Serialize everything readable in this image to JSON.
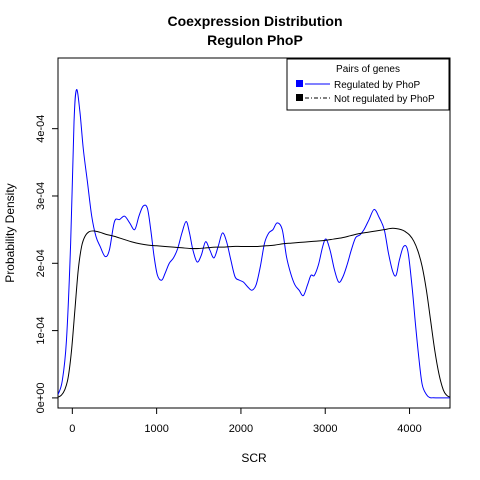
{
  "chart_data": {
    "type": "line",
    "title": "Coexpression Distribution",
    "subtitle": "Regulon PhoP",
    "xlabel": "SCR",
    "ylabel": "Probability Density",
    "xlim": [
      -170,
      4480
    ],
    "ylim": [
      -1.5e-05,
      0.000505
    ],
    "xticks": [
      0,
      1000,
      2000,
      3000,
      4000
    ],
    "xtick_labels": [
      "0",
      "1000",
      "2000",
      "3000",
      "4000"
    ],
    "yticks": [
      0,
      0.0001,
      0.0002,
      0.0003,
      0.0004
    ],
    "ytick_labels": [
      "0e+00",
      "1e-04",
      "2e-04",
      "3e-04",
      "4e-04"
    ],
    "legend": {
      "title": "Pairs of genes",
      "position": "top-right",
      "entries": [
        "Regulated by  PhoP",
        "Not regulated by  PhoP"
      ]
    },
    "series": [
      {
        "name": "Regulated by  PhoP",
        "color": "#0000ff",
        "x": [
          -170,
          -120,
          -70,
          -20,
          20,
          50,
          90,
          130,
          180,
          230,
          280,
          330,
          390,
          440,
          500,
          560,
          620,
          680,
          740,
          790,
          840,
          890,
          930,
          970,
          1010,
          1060,
          1100,
          1150,
          1200,
          1250,
          1300,
          1350,
          1390,
          1430,
          1480,
          1530,
          1580,
          1630,
          1680,
          1730,
          1780,
          1830,
          1880,
          1930,
          1980,
          2030,
          2080,
          2130,
          2180,
          2230,
          2280,
          2330,
          2380,
          2430,
          2490,
          2540,
          2590,
          2640,
          2690,
          2740,
          2790,
          2830,
          2870,
          2920,
          2970,
          3010,
          3060,
          3110,
          3160,
          3210,
          3260,
          3310,
          3360,
          3410,
          3460,
          3520,
          3580,
          3640,
          3700,
          3750,
          3800,
          3840,
          3880,
          3930,
          3980,
          4030,
          4070,
          4110,
          4150,
          4200,
          4240,
          4280,
          4320,
          4360,
          4400,
          4440,
          4480
        ],
        "values": [
          5e-06,
          2.5e-05,
          8.5e-05,
          0.00023,
          0.00041,
          0.000458,
          0.000425,
          0.00037,
          0.00032,
          0.00027,
          0.00024,
          0.000225,
          0.00021,
          0.00022,
          0.000262,
          0.000265,
          0.00027,
          0.00026,
          0.00025,
          0.00027,
          0.000285,
          0.000282,
          0.00025,
          0.00021,
          0.000182,
          0.000175,
          0.000185,
          0.0002,
          0.000208,
          0.000222,
          0.000245,
          0.000262,
          0.000245,
          0.00022,
          0.000202,
          0.000212,
          0.000232,
          0.00022,
          0.000208,
          0.000225,
          0.000245,
          0.000232,
          0.000205,
          0.00018,
          0.000175,
          0.000172,
          0.000165,
          0.00016,
          0.000168,
          0.000195,
          0.00023,
          0.000245,
          0.00025,
          0.00026,
          0.00025,
          0.00021,
          0.000185,
          0.000168,
          0.00016,
          0.000152,
          0.000168,
          0.000182,
          0.000182,
          0.000198,
          0.000225,
          0.000236,
          0.000218,
          0.00019,
          0.000172,
          0.00018,
          0.000198,
          0.00022,
          0.000238,
          0.000242,
          0.00025,
          0.000265,
          0.00028,
          0.000268,
          0.00025,
          0.000215,
          0.000188,
          0.000182,
          0.000205,
          0.000225,
          0.000218,
          0.000165,
          0.00011,
          6e-05,
          2e-05,
          5e-06,
          5e-07,
          2e-07,
          1e-07,
          5e-08,
          3e-08,
          2e-08,
          1e-08
        ]
      },
      {
        "name": "Not regulated by  PhoP",
        "color": "#000000",
        "x": [
          -170,
          -130,
          -90,
          -50,
          -10,
          30,
          70,
          110,
          150,
          200,
          260,
          330,
          400,
          500,
          600,
          700,
          800,
          900,
          1000,
          1100,
          1200,
          1300,
          1400,
          1500,
          1600,
          1700,
          1800,
          1900,
          2000,
          2100,
          2200,
          2300,
          2400,
          2500,
          2600,
          2700,
          2800,
          2900,
          3000,
          3100,
          3200,
          3300,
          3400,
          3500,
          3600,
          3700,
          3800,
          3900,
          3950,
          4000,
          4050,
          4100,
          4150,
          4200,
          4250,
          4300,
          4350,
          4400,
          4440,
          4480
        ],
        "values": [
          1e-06,
          4e-06,
          1.2e-05,
          3e-05,
          7e-05,
          0.00013,
          0.00019,
          0.000225,
          0.00024,
          0.000247,
          0.000248,
          0.000246,
          0.000243,
          0.00024,
          0.000236,
          0.000232,
          0.000229,
          0.000227,
          0.000226,
          0.000225,
          0.000224,
          0.000223,
          0.000222,
          0.000222,
          0.000223,
          0.000224,
          0.000224,
          0.000225,
          0.000225,
          0.000225,
          0.000225,
          0.000226,
          0.000227,
          0.000229,
          0.00023,
          0.000231,
          0.000232,
          0.000233,
          0.000234,
          0.000236,
          0.000238,
          0.000241,
          0.000244,
          0.000246,
          0.000248,
          0.00025,
          0.000252,
          0.00025,
          0.000247,
          0.000242,
          0.000233,
          0.000218,
          0.000195,
          0.00016,
          0.000115,
          7e-05,
          3.5e-05,
          1.2e-05,
          4e-06,
          1e-06
        ]
      }
    ]
  }
}
